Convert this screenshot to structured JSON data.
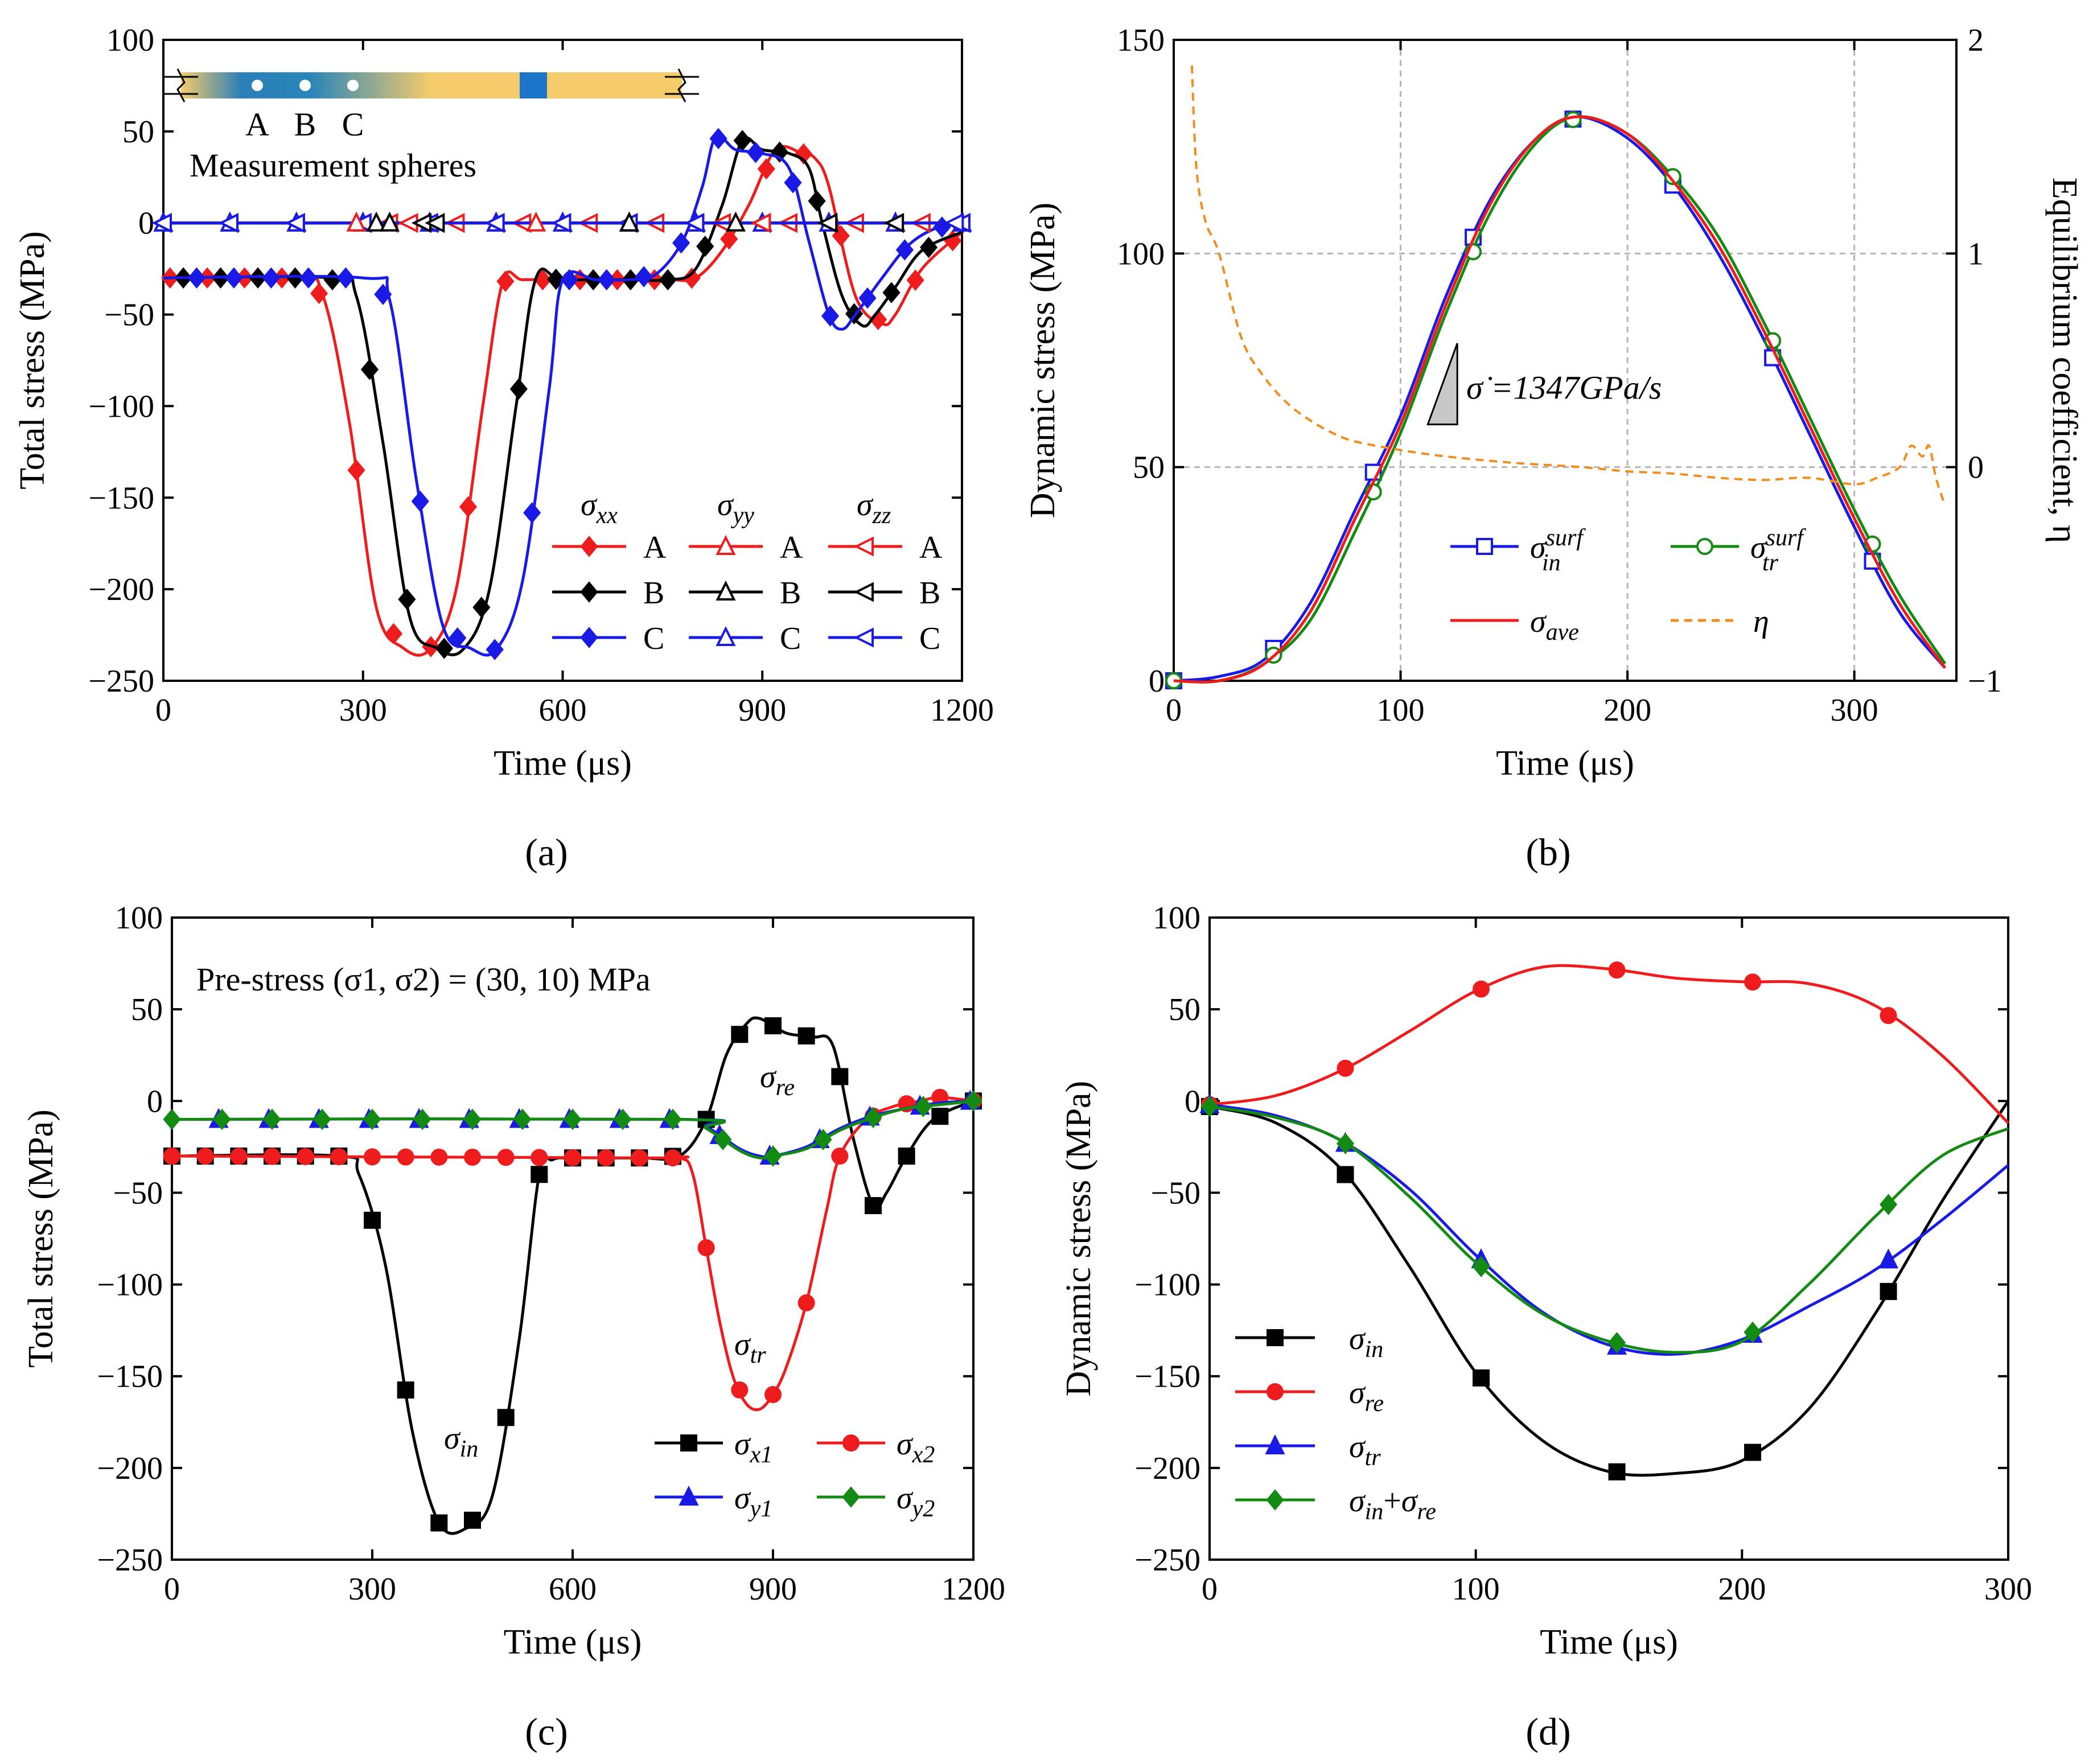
{
  "colors": {
    "red": "#ee1c1c",
    "black": "#000000",
    "blue": "#1a1ae6",
    "green": "#138b13",
    "orange": "#f28c1e",
    "gridline": "#b4b4b4",
    "bar_tan": "#f6cc6a",
    "bar_blue": "#1a75c9"
  },
  "chart_data": [
    {
      "id": "a",
      "type": "line",
      "panel_label": "(a)",
      "xlabel": "Time (μs)",
      "ylabel": "Total stress (MPa)",
      "xlim": [
        0,
        1200
      ],
      "ylim": [
        -250,
        100
      ],
      "xticks": [
        0,
        300,
        600,
        900,
        1200
      ],
      "yticks": [
        100,
        50,
        0,
        -50,
        -100,
        -150,
        -200,
        -250
      ],
      "grid": false,
      "inset": {
        "labels": [
          "A",
          "B",
          "C"
        ],
        "caption": "Measurement spheres"
      },
      "legend": {
        "headers": [
          "σxx",
          "σyy",
          "σzz"
        ],
        "rows": [
          "A",
          "B",
          "C"
        ],
        "position": "bottom-right"
      },
      "series": [
        {
          "name": "σxx A",
          "color": "red",
          "marker": "diamond-filled",
          "x": [
            0,
            200,
            240,
            280,
            320,
            360,
            400,
            440,
            480,
            510,
            540,
            600,
            700,
            760,
            800,
            840,
            880,
            920,
            960,
            980,
            1000,
            1040,
            1080,
            1100,
            1140,
            1200
          ],
          "y": [
            -30,
            -30,
            -40,
            -110,
            -210,
            -232,
            -233,
            -200,
            -100,
            -32,
            -31,
            -31,
            -31,
            -31,
            -30,
            -15,
            10,
            40,
            38,
            35,
            20,
            -40,
            -55,
            -50,
            -25,
            -5
          ]
        },
        {
          "name": "σxx B",
          "color": "black",
          "marker": "diamond-filled",
          "x": [
            0,
            250,
            290,
            330,
            370,
            410,
            450,
            490,
            530,
            560,
            600,
            700,
            760,
            800,
            840,
            870,
            900,
            940,
            970,
            990,
            1020,
            1050,
            1070,
            1100,
            1140,
            1200
          ],
          "y": [
            -30,
            -30,
            -40,
            -120,
            -215,
            -232,
            -233,
            -200,
            -100,
            -30,
            -31,
            -31,
            -31,
            -25,
            10,
            45,
            40,
            38,
            30,
            0,
            -40,
            -56,
            -50,
            -35,
            -15,
            -5
          ]
        },
        {
          "name": "σxx C",
          "color": "blue",
          "marker": "diamond-filled",
          "x": [
            0,
            300,
            340,
            380,
            420,
            460,
            500,
            540,
            580,
            600,
            650,
            700,
            740,
            780,
            810,
            830,
            860,
            900,
            940,
            970,
            1000,
            1020,
            1040,
            1080,
            1120,
            1160,
            1200
          ],
          "y": [
            -30,
            -30,
            -42,
            -140,
            -220,
            -232,
            -233,
            -195,
            -90,
            -31,
            -31,
            -31,
            -28,
            -10,
            20,
            47,
            40,
            38,
            30,
            -10,
            -50,
            -58,
            -50,
            -30,
            -12,
            -3,
            0
          ]
        },
        {
          "name": "σyy A",
          "color": "red",
          "marker": "triangle-up-open",
          "x": [
            0,
            1200
          ],
          "y": [
            0,
            0
          ]
        },
        {
          "name": "σyy B",
          "color": "black",
          "marker": "triangle-up-open",
          "x": [
            0,
            1200
          ],
          "y": [
            0,
            0
          ]
        },
        {
          "name": "σyy C",
          "color": "blue",
          "marker": "triangle-up-open",
          "x": [
            0,
            1200
          ],
          "y": [
            0,
            0
          ]
        },
        {
          "name": "σzz A",
          "color": "red",
          "marker": "triangle-left-open",
          "x": [
            0,
            1200
          ],
          "y": [
            0,
            0
          ]
        },
        {
          "name": "σzz B",
          "color": "black",
          "marker": "triangle-left-open",
          "x": [
            0,
            1200
          ],
          "y": [
            0,
            0
          ]
        },
        {
          "name": "σzz C",
          "color": "blue",
          "marker": "triangle-left-open",
          "x": [
            0,
            1200
          ],
          "y": [
            0,
            0
          ]
        }
      ]
    },
    {
      "id": "b",
      "type": "line",
      "panel_label": "(b)",
      "xlabel": "Time (μs)",
      "ylabel": "Dynamic stress (MPa)",
      "ylabel_right": "Equilibrium coefficient, η",
      "xlim": [
        0,
        345
      ],
      "ylim": [
        0,
        150
      ],
      "ylim_right": [
        -1,
        2
      ],
      "xticks": [
        0,
        100,
        200,
        300
      ],
      "yticks": [
        0,
        50,
        100,
        150
      ],
      "yticks_right": [
        -1,
        0,
        1,
        2
      ],
      "grid": true,
      "annotation": "σ̇ =1347GPa/s",
      "legend": {
        "entries": [
          "σin surf",
          "σtr surf",
          "σave",
          "η"
        ],
        "position": "bottom-right"
      },
      "series": [
        {
          "name": "σin surf",
          "color": "blue",
          "marker": "square-open",
          "x": [
            0,
            20,
            40,
            60,
            80,
            100,
            120,
            140,
            160,
            178,
            200,
            220,
            240,
            260,
            280,
            300,
            320,
            340
          ],
          "y": [
            0,
            1,
            5,
            18,
            40,
            62,
            90,
            113,
            127,
            132,
            127,
            116,
            100,
            80,
            58,
            36,
            16,
            3
          ]
        },
        {
          "name": "σtr surf",
          "color": "green",
          "marker": "circle-open",
          "x": [
            0,
            20,
            40,
            60,
            80,
            100,
            120,
            140,
            160,
            178,
            200,
            220,
            240,
            260,
            280,
            300,
            320,
            340
          ],
          "y": [
            0,
            0,
            4,
            14,
            35,
            58,
            86,
            110,
            126,
            132,
            128,
            118,
            104,
            84,
            62,
            40,
            20,
            4
          ]
        },
        {
          "name": "σave",
          "color": "red",
          "marker": "none",
          "x": [
            0,
            20,
            40,
            60,
            80,
            100,
            120,
            140,
            160,
            178,
            200,
            220,
            240,
            260,
            280,
            300,
            320,
            340
          ],
          "y": [
            0,
            0,
            4,
            16,
            38,
            60,
            88,
            112,
            127,
            132,
            128,
            117,
            102,
            82,
            60,
            38,
            18,
            3
          ]
        },
        {
          "name": "η",
          "color": "orange",
          "dashed": true,
          "axis": "right",
          "x": [
            8,
            10,
            14,
            20,
            30,
            40,
            50,
            60,
            70,
            80,
            100,
            120,
            150,
            180,
            200,
            220,
            240,
            260,
            280,
            300,
            310,
            320,
            325,
            330,
            333,
            336,
            340
          ],
          "y": [
            1.88,
            1.4,
            1.15,
            1.0,
            0.6,
            0.42,
            0.3,
            0.22,
            0.16,
            0.12,
            0.08,
            0.05,
            0.02,
            0.0,
            -0.02,
            -0.03,
            -0.05,
            -0.06,
            -0.05,
            -0.08,
            -0.05,
            0.0,
            0.1,
            0.05,
            0.1,
            -0.05,
            -0.18
          ]
        }
      ]
    },
    {
      "id": "c",
      "type": "line",
      "panel_label": "(c)",
      "xlabel": "Time (μs)",
      "ylabel": "Total stress (MPa)",
      "xlim": [
        0,
        1200
      ],
      "ylim": [
        -250,
        100
      ],
      "xticks": [
        0,
        300,
        600,
        900,
        1200
      ],
      "yticks": [
        100,
        50,
        0,
        -50,
        -100,
        -150,
        -200,
        -250
      ],
      "grid": false,
      "annotation": "Pre-stress (σ1, σ2) = (30, 10) MPa",
      "curve_labels": [
        "σin",
        "σre",
        "σtr"
      ],
      "legend": {
        "entries": [
          "σx1",
          "σx2",
          "σy1",
          "σy2"
        ],
        "position": "bottom-right"
      },
      "series": [
        {
          "name": "σx1",
          "color": "black",
          "marker": "square-filled",
          "x": [
            0,
            250,
            280,
            320,
            360,
            400,
            440,
            480,
            520,
            550,
            570,
            600,
            700,
            760,
            800,
            830,
            860,
            880,
            920,
            960,
            990,
            1020,
            1050,
            1070,
            1100,
            1140,
            1200
          ],
          "y": [
            -30,
            -30,
            -40,
            -90,
            -180,
            -230,
            -233,
            -215,
            -130,
            -40,
            -32,
            -31,
            -31,
            -30,
            -10,
            25,
            42,
            45,
            37,
            35,
            30,
            -20,
            -57,
            -50,
            -30,
            -10,
            0
          ]
        },
        {
          "name": "σx2",
          "color": "red",
          "marker": "circle-filled",
          "x": [
            0,
            700,
            760,
            780,
            800,
            820,
            840,
            860,
            880,
            900,
            920,
            950,
            980,
            1000,
            1040,
            1080,
            1120,
            1150,
            1200
          ],
          "y": [
            -30,
            -31,
            -31,
            -40,
            -80,
            -120,
            -150,
            -165,
            -168,
            -160,
            -145,
            -110,
            -60,
            -30,
            -10,
            -3,
            0,
            2,
            0
          ]
        },
        {
          "name": "σy1",
          "color": "blue",
          "marker": "triangle-up-filled",
          "x": [
            0,
            760,
            800,
            850,
            880,
            900,
            950,
            1000,
            1050,
            1100,
            1150,
            1200
          ],
          "y": [
            -10,
            -10,
            -14,
            -26,
            -30,
            -30,
            -25,
            -15,
            -8,
            -4,
            -1,
            0
          ]
        },
        {
          "name": "σy2",
          "color": "green",
          "marker": "diamond-filled",
          "x": [
            0,
            760,
            800,
            850,
            880,
            900,
            950,
            1000,
            1050,
            1100,
            1150,
            1200
          ],
          "y": [
            -10,
            -10,
            -15,
            -27,
            -31,
            -30,
            -26,
            -16,
            -9,
            -4,
            -2,
            0
          ]
        }
      ]
    },
    {
      "id": "d",
      "type": "line",
      "panel_label": "(d)",
      "xlabel": "Time (μs)",
      "ylabel": "Dynamic stress (MPa)",
      "xlim": [
        0,
        300
      ],
      "ylim": [
        -250,
        100
      ],
      "xticks": [
        0,
        100,
        200,
        300
      ],
      "yticks": [
        100,
        50,
        0,
        -50,
        -100,
        -150,
        -200,
        -250
      ],
      "grid": false,
      "legend": {
        "entries": [
          "σin",
          "σre",
          "σtr",
          "σin+σre"
        ],
        "position": "bottom-left"
      },
      "series": [
        {
          "name": "σin",
          "color": "black",
          "marker": "square-filled",
          "x": [
            0,
            25,
            50,
            75,
            100,
            125,
            150,
            175,
            200,
            225,
            250,
            275,
            300
          ],
          "y": [
            -3,
            -12,
            -38,
            -90,
            -148,
            -185,
            -202,
            -203,
            -196,
            -168,
            -116,
            -55,
            0
          ]
        },
        {
          "name": "σre",
          "color": "red",
          "marker": "circle-filled",
          "x": [
            0,
            25,
            50,
            75,
            100,
            125,
            150,
            175,
            200,
            225,
            250,
            275,
            300
          ],
          "y": [
            -2,
            3,
            17,
            38,
            60,
            73,
            72,
            67,
            65,
            64,
            52,
            25,
            -12
          ]
        },
        {
          "name": "σtr",
          "color": "blue",
          "marker": "triangle-up-filled",
          "x": [
            0,
            25,
            50,
            75,
            100,
            125,
            150,
            175,
            200,
            225,
            250,
            275,
            300
          ],
          "y": [
            -2,
            -8,
            -22,
            -48,
            -84,
            -115,
            -133,
            -138,
            -130,
            -112,
            -92,
            -65,
            -35
          ]
        },
        {
          "name": "σin+σre",
          "color": "green",
          "marker": "diamond-filled",
          "x": [
            0,
            25,
            50,
            75,
            100,
            125,
            150,
            175,
            200,
            225,
            250,
            275,
            300
          ],
          "y": [
            -3,
            -9,
            -22,
            -52,
            -88,
            -116,
            -131,
            -137,
            -131,
            -100,
            -63,
            -30,
            -15
          ]
        }
      ]
    }
  ]
}
